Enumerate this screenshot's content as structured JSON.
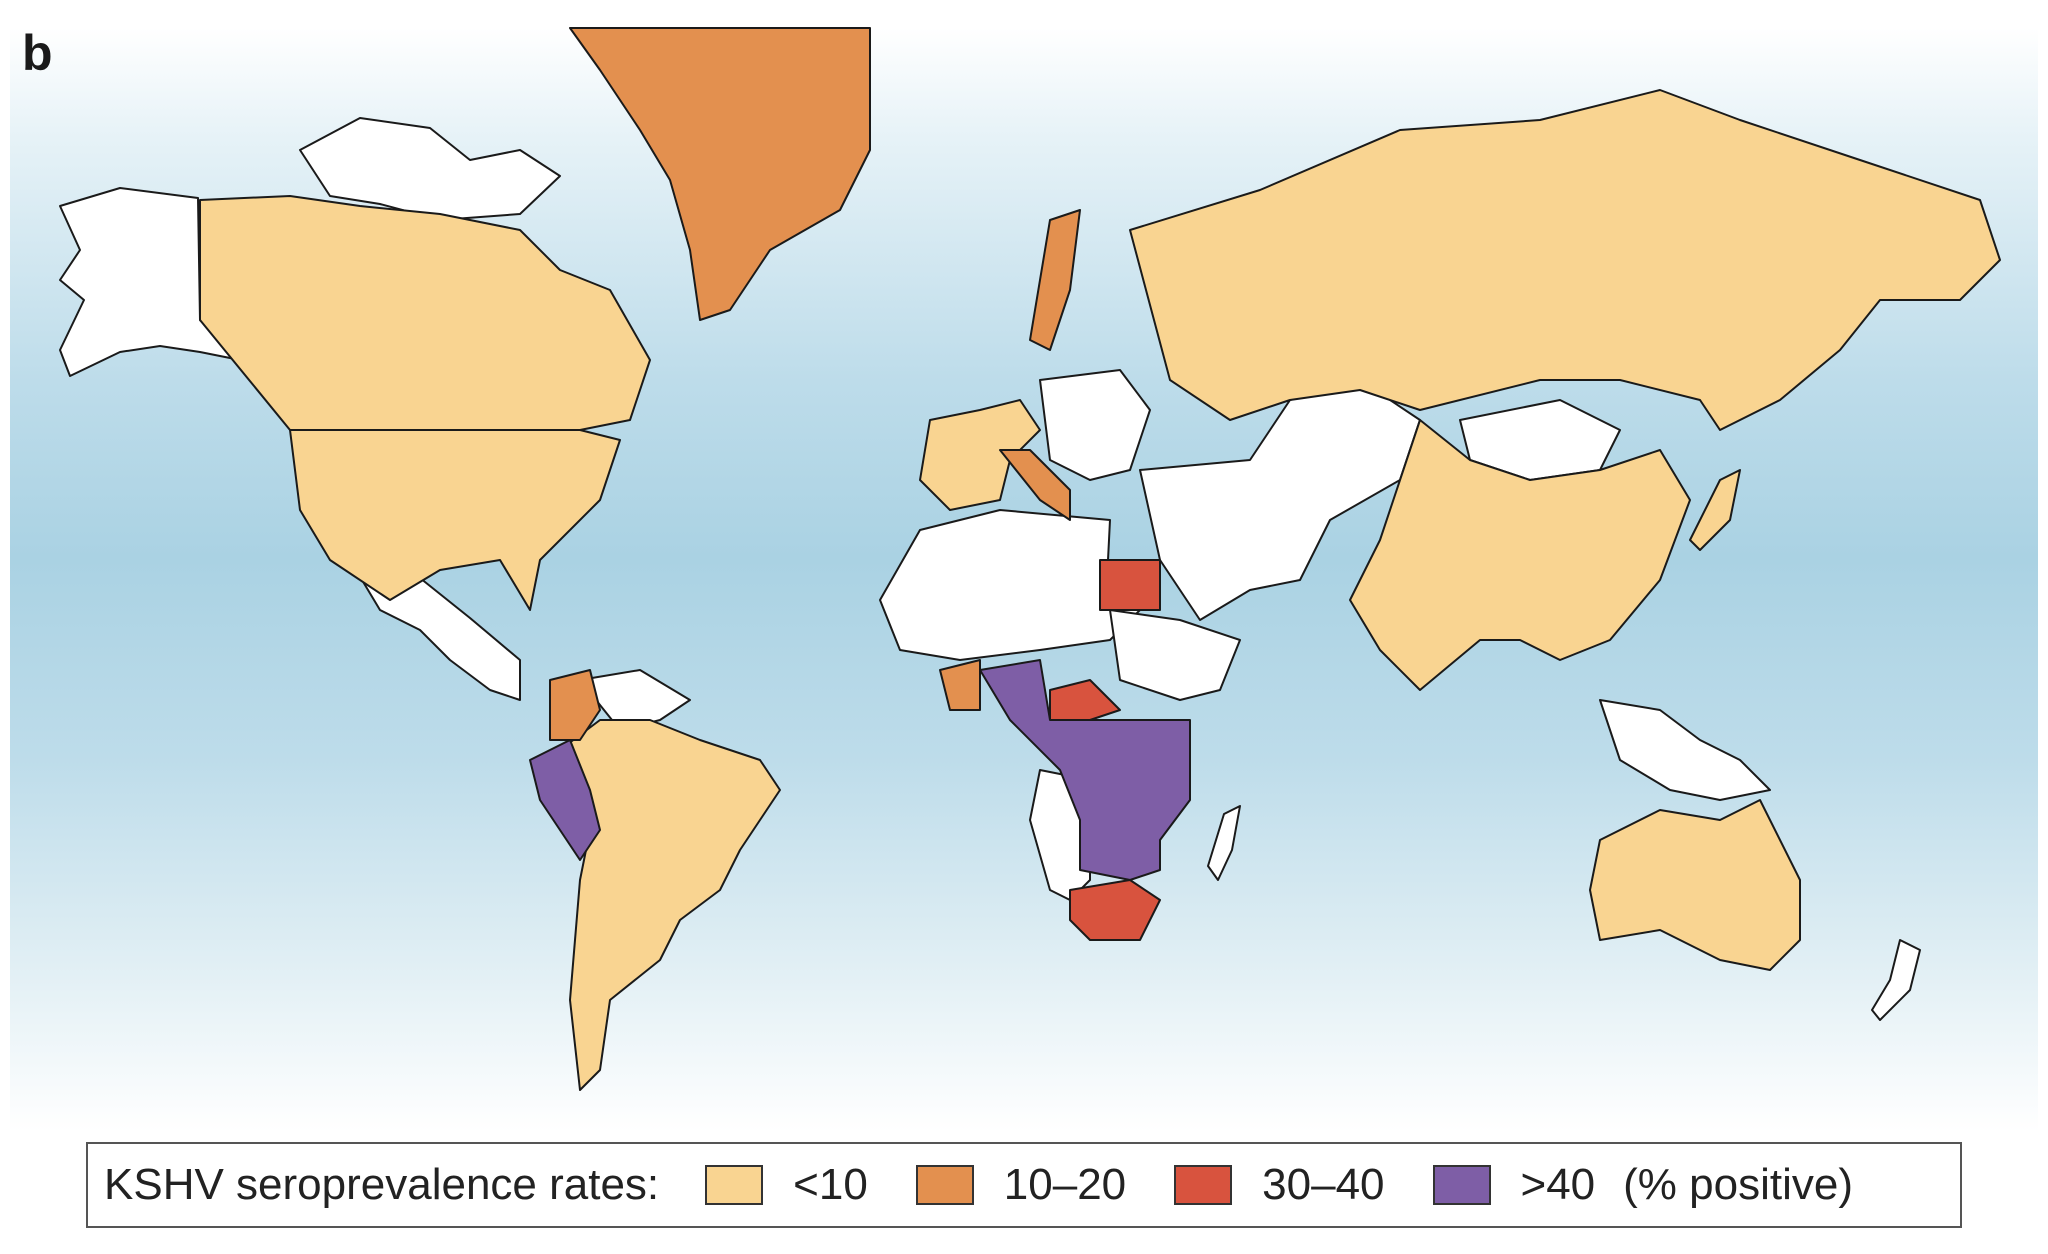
{
  "panel_label": "b",
  "colors": {
    "ocean": "#aad2e3",
    "no_data": "#ffffff",
    "border": "#1a1a1a",
    "lt10": "#f9d491",
    "r10_20": "#e3904f",
    "r30_40": "#d8533e",
    "gt40": "#7e5ea6"
  },
  "legend": {
    "title": "KSHV seroprevalence rates:",
    "items": [
      {
        "label": "<10",
        "color": "#f9d491"
      },
      {
        "label": "10–20",
        "color": "#e3904f"
      },
      {
        "label": "30–40",
        "color": "#d8533e"
      },
      {
        "label": ">40",
        "color": "#7e5ea6"
      }
    ],
    "unit": "(% positive)"
  }
}
